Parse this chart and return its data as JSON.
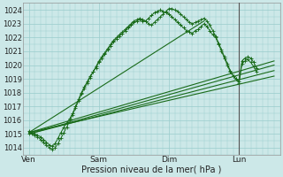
{
  "xlabel": "Pression niveau de la mer( hPa )",
  "bg_color": "#cce8e8",
  "grid_color": "#99cccc",
  "line_color": "#1a6b1a",
  "ylim": [
    1013.5,
    1024.5
  ],
  "yticks": [
    1014,
    1015,
    1016,
    1017,
    1018,
    1019,
    1020,
    1021,
    1022,
    1023,
    1024
  ],
  "xtick_labels": [
    "Ven",
    "Sam",
    "Dim",
    "Lun"
  ],
  "xtick_positions": [
    0,
    24,
    48,
    72
  ],
  "xlim": [
    -2,
    86
  ],
  "vline_x": 72,
  "fan_lines": [
    {
      "x0": 0,
      "y0": 1015.1,
      "x1": 84,
      "y1": 1019.2
    },
    {
      "x0": 0,
      "y0": 1015.0,
      "x1": 84,
      "y1": 1019.6
    },
    {
      "x0": 0,
      "y0": 1015.0,
      "x1": 84,
      "y1": 1020.0
    },
    {
      "x0": 0,
      "y0": 1015.1,
      "x1": 84,
      "y1": 1020.3
    },
    {
      "x0": 0,
      "y0": 1015.1,
      "x1": 60,
      "y1": 1023.2
    }
  ],
  "noisy_line1_x": [
    0,
    1,
    2,
    3,
    4,
    5,
    6,
    7,
    8,
    9,
    10,
    11,
    12,
    13,
    14,
    15,
    16,
    17,
    18,
    19,
    20,
    21,
    22,
    23,
    24,
    25,
    26,
    27,
    28,
    29,
    30,
    31,
    32,
    33,
    34,
    35,
    36,
    37,
    38,
    39,
    40,
    41,
    42,
    43,
    44,
    45,
    46,
    47,
    48,
    49,
    50,
    51,
    52,
    53,
    54,
    55,
    56,
    57,
    58,
    59,
    60,
    61,
    62,
    63,
    64,
    65,
    66,
    67,
    68,
    69,
    70,
    71,
    72,
    73,
    74,
    75,
    76,
    77,
    78
  ],
  "noisy_line1_y": [
    1015.2,
    1015.1,
    1015.0,
    1014.9,
    1014.8,
    1014.6,
    1014.4,
    1014.2,
    1014.1,
    1014.3,
    1014.7,
    1015.1,
    1015.5,
    1015.8,
    1016.1,
    1016.5,
    1017.0,
    1017.5,
    1018.0,
    1018.4,
    1018.8,
    1019.2,
    1019.5,
    1019.8,
    1020.2,
    1020.5,
    1020.8,
    1021.1,
    1021.4,
    1021.7,
    1021.9,
    1022.1,
    1022.3,
    1022.5,
    1022.7,
    1022.9,
    1023.1,
    1023.2,
    1023.3,
    1023.2,
    1023.2,
    1023.4,
    1023.6,
    1023.8,
    1023.9,
    1024.0,
    1023.9,
    1023.8,
    1023.7,
    1023.5,
    1023.3,
    1023.1,
    1022.9,
    1022.7,
    1022.5,
    1022.4,
    1022.3,
    1022.5,
    1022.6,
    1022.8,
    1023.0,
    1022.8,
    1022.5,
    1022.2,
    1022.0,
    1021.5,
    1021.0,
    1020.5,
    1020.0,
    1019.5,
    1019.2,
    1019.0,
    1018.8,
    1020.3,
    1020.5,
    1020.6,
    1020.5,
    1020.2,
    1019.8
  ],
  "noisy_line2_x": [
    0,
    1,
    2,
    3,
    4,
    5,
    6,
    7,
    8,
    9,
    10,
    11,
    12,
    13,
    14,
    15,
    16,
    17,
    18,
    19,
    20,
    21,
    22,
    23,
    24,
    25,
    26,
    27,
    28,
    29,
    30,
    31,
    32,
    33,
    34,
    35,
    36,
    37,
    38,
    39,
    40,
    41,
    42,
    43,
    44,
    45,
    46,
    47,
    48,
    49,
    50,
    51,
    52,
    53,
    54,
    55,
    56,
    57,
    58,
    59,
    60,
    61,
    62,
    63,
    64,
    65,
    66,
    67,
    68,
    69,
    70,
    71,
    72,
    73,
    74,
    75,
    76,
    77,
    78
  ],
  "noisy_line2_y": [
    1015.0,
    1015.0,
    1014.9,
    1014.8,
    1014.6,
    1014.4,
    1014.2,
    1014.0,
    1013.9,
    1014.0,
    1014.3,
    1014.7,
    1015.1,
    1015.5,
    1016.0,
    1016.4,
    1016.9,
    1017.4,
    1017.9,
    1018.3,
    1018.7,
    1019.1,
    1019.5,
    1019.9,
    1020.3,
    1020.6,
    1020.9,
    1021.2,
    1021.5,
    1021.8,
    1022.0,
    1022.2,
    1022.4,
    1022.6,
    1022.8,
    1023.0,
    1023.2,
    1023.3,
    1023.4,
    1023.3,
    1023.2,
    1023.0,
    1022.9,
    1023.1,
    1023.3,
    1023.5,
    1023.7,
    1023.9,
    1024.1,
    1024.1,
    1024.0,
    1023.9,
    1023.7,
    1023.5,
    1023.3,
    1023.1,
    1023.0,
    1023.1,
    1023.2,
    1023.3,
    1023.4,
    1023.2,
    1022.9,
    1022.5,
    1022.1,
    1021.6,
    1021.1,
    1020.6,
    1020.1,
    1019.6,
    1019.2,
    1019.0,
    1018.7,
    1020.1,
    1020.3,
    1020.4,
    1020.2,
    1019.9,
    1019.5
  ]
}
